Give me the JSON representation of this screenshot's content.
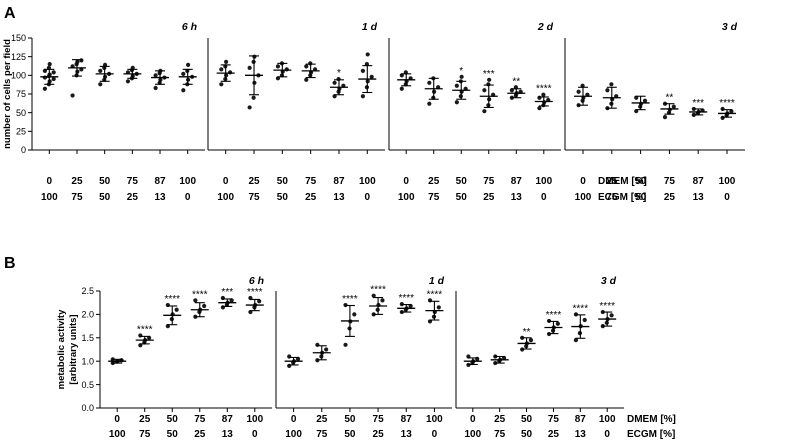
{
  "panel_labels": [
    "A",
    "B"
  ],
  "row_labels": {
    "dmem": "DMEM [%]",
    "ecgm": "ECGM [%]"
  },
  "categories": {
    "dmem": [
      "0",
      "25",
      "50",
      "75",
      "87",
      "100"
    ],
    "ecgm": [
      "100",
      "75",
      "50",
      "25",
      "13",
      "0"
    ]
  },
  "chart_data": [
    {
      "type": "scatter",
      "panel": "A",
      "ylabel": "number of cells per field",
      "ylim": [
        0,
        150
      ],
      "yticks": [
        0,
        25,
        50,
        75,
        100,
        125,
        150
      ],
      "subplots": [
        {
          "title": "6 h",
          "mean": [
            98,
            110,
            102,
            102,
            97,
            98
          ],
          "sd": [
            10,
            11,
            10,
            6,
            9,
            10
          ],
          "stars": [
            "",
            "",
            "",
            "",
            "",
            ""
          ],
          "points": [
            [
              82,
              88,
              92,
              95,
              97,
              99,
              101,
              104,
              106,
              110,
              115
            ],
            [
              73,
              100,
              105,
              108,
              112,
              115,
              118,
              120
            ],
            [
              88,
              94,
              98,
              102,
              106,
              110,
              114
            ],
            [
              92,
              96,
              99,
              102,
              104,
              107,
              110
            ],
            [
              83,
              90,
              94,
              97,
              100,
              103,
              106
            ],
            [
              80,
              88,
              94,
              98,
              102,
              106,
              114
            ]
          ]
        },
        {
          "title": "1 d",
          "mean": [
            103,
            100,
            107,
            106,
            84,
            95
          ],
          "sd": [
            11,
            26,
            9,
            9,
            10,
            18
          ],
          "stars": [
            "",
            "",
            "",
            "",
            "*",
            ""
          ],
          "points": [
            [
              88,
              95,
              100,
              104,
              108,
              112,
              118
            ],
            [
              57,
              70,
              90,
              100,
              110,
              118,
              125
            ],
            [
              96,
              100,
              105,
              108,
              112,
              116
            ],
            [
              94,
              100,
              104,
              108,
              112,
              116
            ],
            [
              72,
              78,
              82,
              86,
              90,
              95
            ],
            [
              72,
              84,
              92,
              98,
              106,
              115,
              128
            ]
          ]
        },
        {
          "title": "2 d",
          "mean": [
            94,
            82,
            80,
            72,
            76,
            65
          ],
          "sd": [
            8,
            14,
            12,
            15,
            6,
            6
          ],
          "stars": [
            "",
            "",
            "*",
            "***",
            "**",
            "****"
          ],
          "points": [
            [
              82,
              88,
              92,
              96,
              100,
              104
            ],
            [
              62,
              70,
              78,
              84,
              90,
              96
            ],
            [
              64,
              72,
              78,
              82,
              86,
              92,
              98
            ],
            [
              52,
              60,
              68,
              74,
              80,
              88,
              94
            ],
            [
              70,
              73,
              76,
              78,
              80,
              84
            ],
            [
              56,
              60,
              64,
              67,
              70,
              74
            ]
          ]
        },
        {
          "title": "3 d",
          "mean": [
            72,
            70,
            63,
            55,
            51,
            49
          ],
          "sd": [
            12,
            14,
            9,
            7,
            4,
            5
          ],
          "stars": [
            "",
            "",
            "",
            "**",
            "***",
            "****"
          ],
          "points": [
            [
              60,
              66,
              70,
              74,
              78,
              86
            ],
            [
              56,
              62,
              68,
              72,
              80,
              88
            ],
            [
              52,
              58,
              62,
              66,
              70
            ],
            [
              44,
              50,
              54,
              58,
              62
            ],
            [
              47,
              49,
              51,
              53,
              55
            ],
            [
              43,
              46,
              49,
              52,
              55
            ]
          ]
        }
      ]
    },
    {
      "type": "scatter",
      "panel": "B",
      "ylabel": "metabolic activity [arbitrary units]",
      "ylabel_lines": [
        "metabolic activity",
        "[arbitrary units]"
      ],
      "ylim": [
        0,
        2.5
      ],
      "yticks": [
        0.0,
        0.5,
        1.0,
        1.5,
        2.0,
        2.5
      ],
      "subplots": [
        {
          "title": "6 h",
          "mean": [
            1.0,
            1.45,
            1.98,
            2.1,
            2.25,
            2.2
          ],
          "sd": [
            0.04,
            0.08,
            0.2,
            0.15,
            0.08,
            0.12
          ],
          "stars": [
            "",
            "****",
            "****",
            "****",
            "***",
            "****"
          ],
          "points": [
            [
              0.96,
              0.99,
              1.0,
              1.02,
              1.04
            ],
            [
              1.34,
              1.4,
              1.45,
              1.5,
              1.55
            ],
            [
              1.75,
              1.9,
              2.0,
              2.1,
              2.2
            ],
            [
              1.95,
              2.05,
              2.1,
              2.18,
              2.3
            ],
            [
              2.15,
              2.2,
              2.25,
              2.3,
              2.35
            ],
            [
              2.05,
              2.15,
              2.2,
              2.28,
              2.35
            ]
          ]
        },
        {
          "title": "1 d",
          "mean": [
            1.0,
            1.18,
            1.86,
            2.18,
            2.13,
            2.08
          ],
          "sd": [
            0.08,
            0.15,
            0.33,
            0.18,
            0.08,
            0.2
          ],
          "stars": [
            "",
            "",
            "****",
            "****",
            "****",
            "****"
          ],
          "points": [
            [
              0.9,
              0.97,
              1.0,
              1.05,
              1.1
            ],
            [
              1.02,
              1.1,
              1.18,
              1.25,
              1.35
            ],
            [
              1.35,
              1.7,
              1.85,
              2.0,
              2.2
            ],
            [
              2.0,
              2.1,
              2.2,
              2.3,
              2.4
            ],
            [
              2.05,
              2.1,
              2.13,
              2.18,
              2.22
            ],
            [
              1.85,
              1.95,
              2.05,
              2.15,
              2.3
            ]
          ]
        },
        {
          "title": "3 d",
          "mean": [
            1.0,
            1.03,
            1.38,
            1.72,
            1.74,
            1.9
          ],
          "sd": [
            0.07,
            0.07,
            0.12,
            0.13,
            0.25,
            0.15
          ],
          "stars": [
            "",
            "",
            "**",
            "****",
            "****",
            "****"
          ],
          "points": [
            [
              0.92,
              0.96,
              1.0,
              1.05,
              1.1
            ],
            [
              0.96,
              1.0,
              1.03,
              1.07,
              1.1
            ],
            [
              1.25,
              1.32,
              1.38,
              1.45,
              1.5
            ],
            [
              1.58,
              1.65,
              1.72,
              1.8,
              1.86
            ],
            [
              1.45,
              1.6,
              1.75,
              1.88,
              2.0
            ],
            [
              1.75,
              1.82,
              1.9,
              1.98,
              2.05
            ]
          ]
        }
      ]
    }
  ]
}
